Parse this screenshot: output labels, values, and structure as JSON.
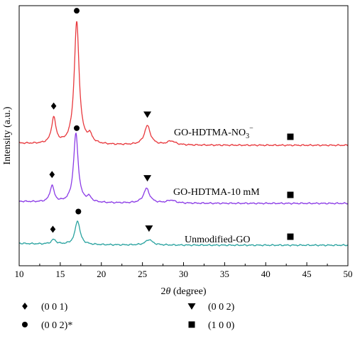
{
  "chart_data": {
    "type": "line",
    "title": "",
    "xlabel_prefix": "2",
    "xlabel_var": "θ",
    "xlabel_suffix": " (degree)",
    "ylabel": "Intensity (a.u.)",
    "xlim": [
      10,
      50
    ],
    "x_ticks": [
      10,
      15,
      20,
      25,
      30,
      35,
      40,
      45,
      50
    ],
    "y_ticks_shown": false,
    "grid": false,
    "series": [
      {
        "name": "GO-HDTMA-NO",
        "name_sub": "3",
        "name_sup": "−",
        "color": "#e8383d",
        "baseline": 0.0,
        "peaks": [
          {
            "x": 14.2,
            "height": 0.27,
            "width": 0.32
          },
          {
            "x": 17.0,
            "height": 1.28,
            "width": 0.36
          },
          {
            "x": 18.6,
            "height": 0.08,
            "width": 0.35
          },
          {
            "x": 25.6,
            "height": 0.2,
            "width": 0.45
          },
          {
            "x": 28.5,
            "height": 0.04,
            "width": 0.6
          }
        ],
        "markers": [
          {
            "x": 14.2,
            "symbol": "diamond"
          },
          {
            "x": 17.0,
            "symbol": "circle"
          },
          {
            "x": 25.6,
            "symbol": "triangle"
          },
          {
            "x": 43.0,
            "symbol": "square"
          }
        ]
      },
      {
        "name": "GO-HDTMA-10 mM",
        "color": "#8b3be6",
        "baseline": 0.0,
        "peaks": [
          {
            "x": 14.0,
            "height": 0.17,
            "width": 0.3
          },
          {
            "x": 16.9,
            "height": 0.71,
            "width": 0.34
          },
          {
            "x": 18.5,
            "height": 0.05,
            "width": 0.35
          },
          {
            "x": 25.5,
            "height": 0.15,
            "width": 0.45
          },
          {
            "x": 28.5,
            "height": 0.03,
            "width": 0.6
          }
        ],
        "markers": [
          {
            "x": 14.0,
            "symbol": "diamond"
          },
          {
            "x": 17.0,
            "symbol": "circle"
          },
          {
            "x": 25.6,
            "symbol": "triangle"
          },
          {
            "x": 43.0,
            "symbol": "square"
          }
        ]
      },
      {
        "name": "Unmodified-GO",
        "color": "#2aa3a0",
        "baseline": 0.0,
        "peaks": [
          {
            "x": 14.2,
            "height": 0.05,
            "width": 0.35
          },
          {
            "x": 17.1,
            "height": 0.26,
            "width": 0.36
          },
          {
            "x": 25.8,
            "height": 0.06,
            "width": 0.5
          }
        ],
        "markers": [
          {
            "x": 14.1,
            "symbol": "diamond"
          },
          {
            "x": 17.2,
            "symbol": "circle"
          },
          {
            "x": 25.8,
            "symbol": "triangle"
          },
          {
            "x": 43.0,
            "symbol": "square"
          }
        ]
      }
    ],
    "legend": [
      {
        "symbol": "diamond",
        "label": "(0 0 1)"
      },
      {
        "symbol": "triangle",
        "label": "(0 0 2)"
      },
      {
        "symbol": "circle",
        "label": "(0 0 2)*"
      },
      {
        "symbol": "square",
        "label": "(1 0 0)"
      }
    ]
  }
}
